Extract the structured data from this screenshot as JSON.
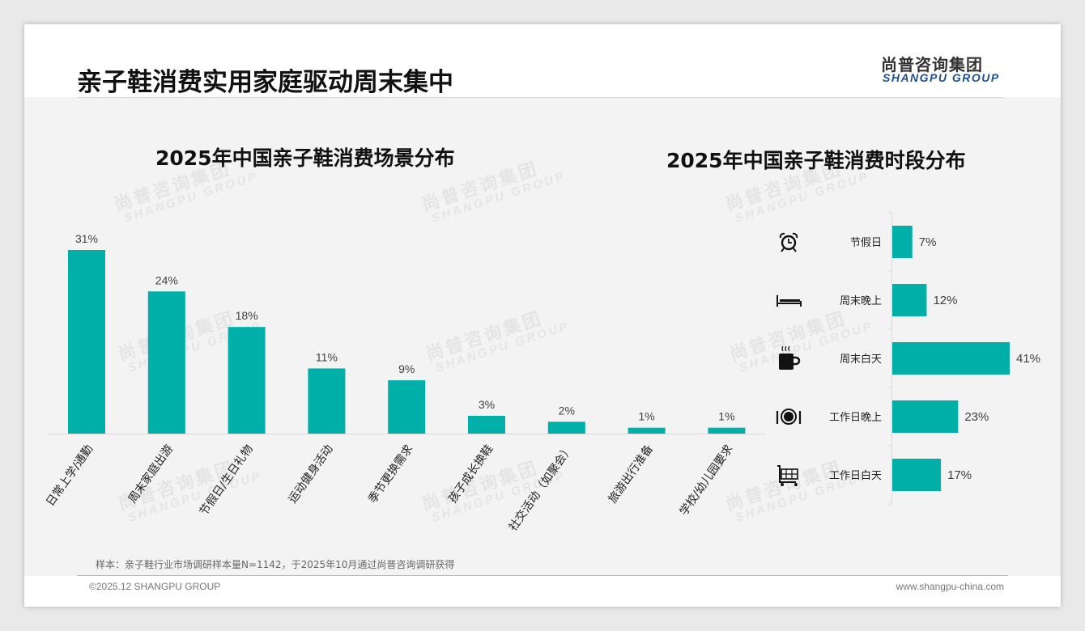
{
  "header": {
    "title": "亲子鞋消费实用家庭驱动周末集中",
    "logo_cn": "尚普咨询集团",
    "logo_en": "SHANGPU GROUP"
  },
  "watermark": {
    "cn": "尚普咨询集团",
    "en": "SHANGPU GROUP"
  },
  "colors": {
    "bar": "#00b0a8",
    "axis": "#d9d9d9",
    "text": "#404040"
  },
  "chart_data": [
    {
      "type": "bar",
      "title": "2025年中国亲子鞋消费场景分布",
      "categories": [
        "日常上学/通勤",
        "周末家庭出游",
        "节假日/生日礼物",
        "运动健身活动",
        "季节更换需求",
        "孩子成长换鞋",
        "社交活动（如聚会）",
        "旅游出行准备",
        "学校/幼儿园要求"
      ],
      "values": [
        31,
        24,
        18,
        11,
        9,
        3,
        2,
        1,
        1
      ],
      "labels": [
        "31%",
        "24%",
        "18%",
        "11%",
        "9%",
        "3%",
        "2%",
        "1%",
        "1%"
      ],
      "unit": "%",
      "ylim": [
        0,
        31
      ],
      "grid": false
    },
    {
      "type": "bar",
      "orientation": "horizontal",
      "title": "2025年中国亲子鞋消费时段分布",
      "categories": [
        "节假日",
        "周末晚上",
        "周末白天",
        "工作日晚上",
        "工作日白天"
      ],
      "icons": [
        "alarm-clock-icon",
        "bed-icon",
        "coffee-mug-icon",
        "plate-cutlery-icon",
        "shopping-cart-icon"
      ],
      "values": [
        7,
        12,
        41,
        23,
        17
      ],
      "labels": [
        "7%",
        "12%",
        "41%",
        "23%",
        "17%"
      ],
      "unit": "%",
      "xlim": [
        0,
        41
      ],
      "grid": false
    }
  ],
  "footer": {
    "note": "样本：亲子鞋行业市场调研样本量N=1142，于2025年10月通过尚普咨询调研获得",
    "copyright": "©2025.12 SHANGPU GROUP",
    "url": "www.shangpu-china.com"
  }
}
